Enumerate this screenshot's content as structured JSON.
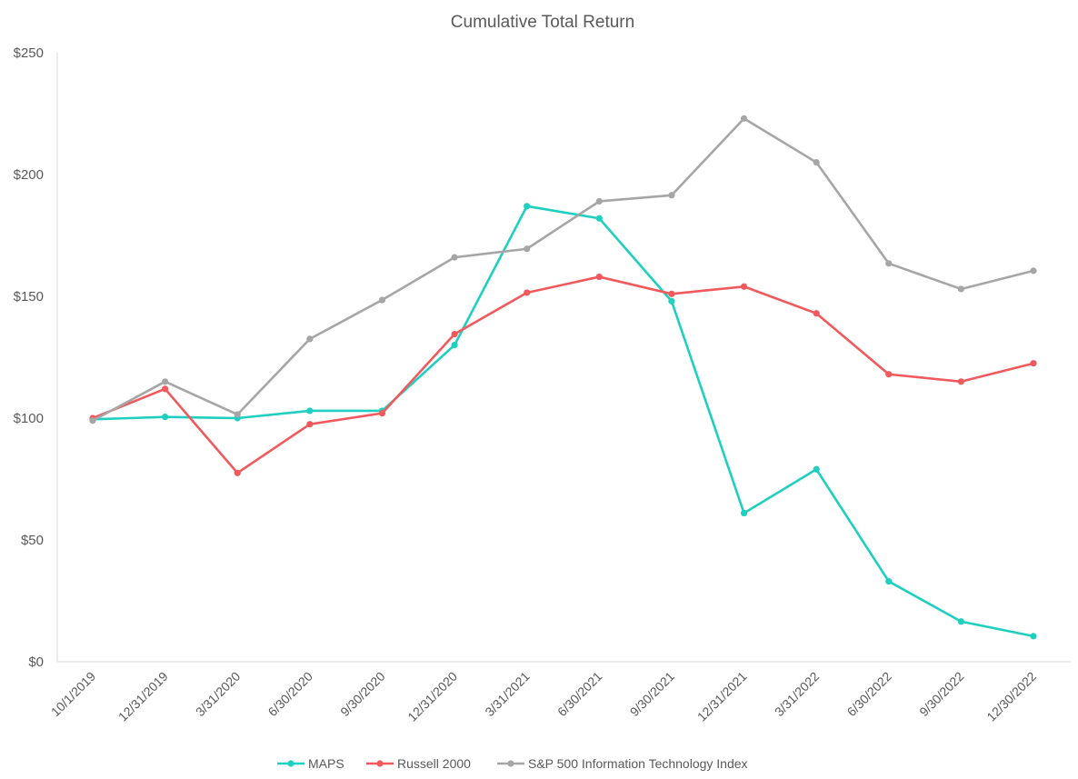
{
  "chart_data": {
    "type": "line",
    "title": "Cumulative Total Return",
    "xlabel": "",
    "ylabel": "",
    "categories": [
      "10/1/2019",
      "12/31/2019",
      "3/31/2020",
      "6/30/2020",
      "9/30/2020",
      "12/31/2020",
      "3/31/2021",
      "6/30/2021",
      "9/30/2021",
      "12/31/2021",
      "3/31/2022",
      "6/30/2022",
      "9/30/2022",
      "12/30/2022"
    ],
    "yticks": [
      "$0",
      "$50",
      "$100",
      "$150",
      "$200",
      "$250"
    ],
    "ylim": [
      0,
      250
    ],
    "grid": false,
    "legend_position": "bottom",
    "series": [
      {
        "name": "MAPS",
        "color": "#1fcfbf",
        "values": [
          99.5,
          100.5,
          100,
          103,
          103,
          130,
          187,
          182,
          148,
          61,
          79,
          33,
          16.5,
          10.5
        ]
      },
      {
        "name": "Russell 2000",
        "color": "#f05a5d",
        "values": [
          100,
          112,
          77.5,
          97.5,
          102,
          134.5,
          151.5,
          158,
          151,
          154,
          143,
          118,
          115,
          122.5
        ]
      },
      {
        "name": "S&P 500 Information Technology Index",
        "color": "#a6a6a6",
        "values": [
          99,
          115,
          101.5,
          132.5,
          148.5,
          166,
          169.5,
          189,
          191.5,
          223,
          205,
          163.5,
          153,
          160.5
        ]
      }
    ]
  }
}
